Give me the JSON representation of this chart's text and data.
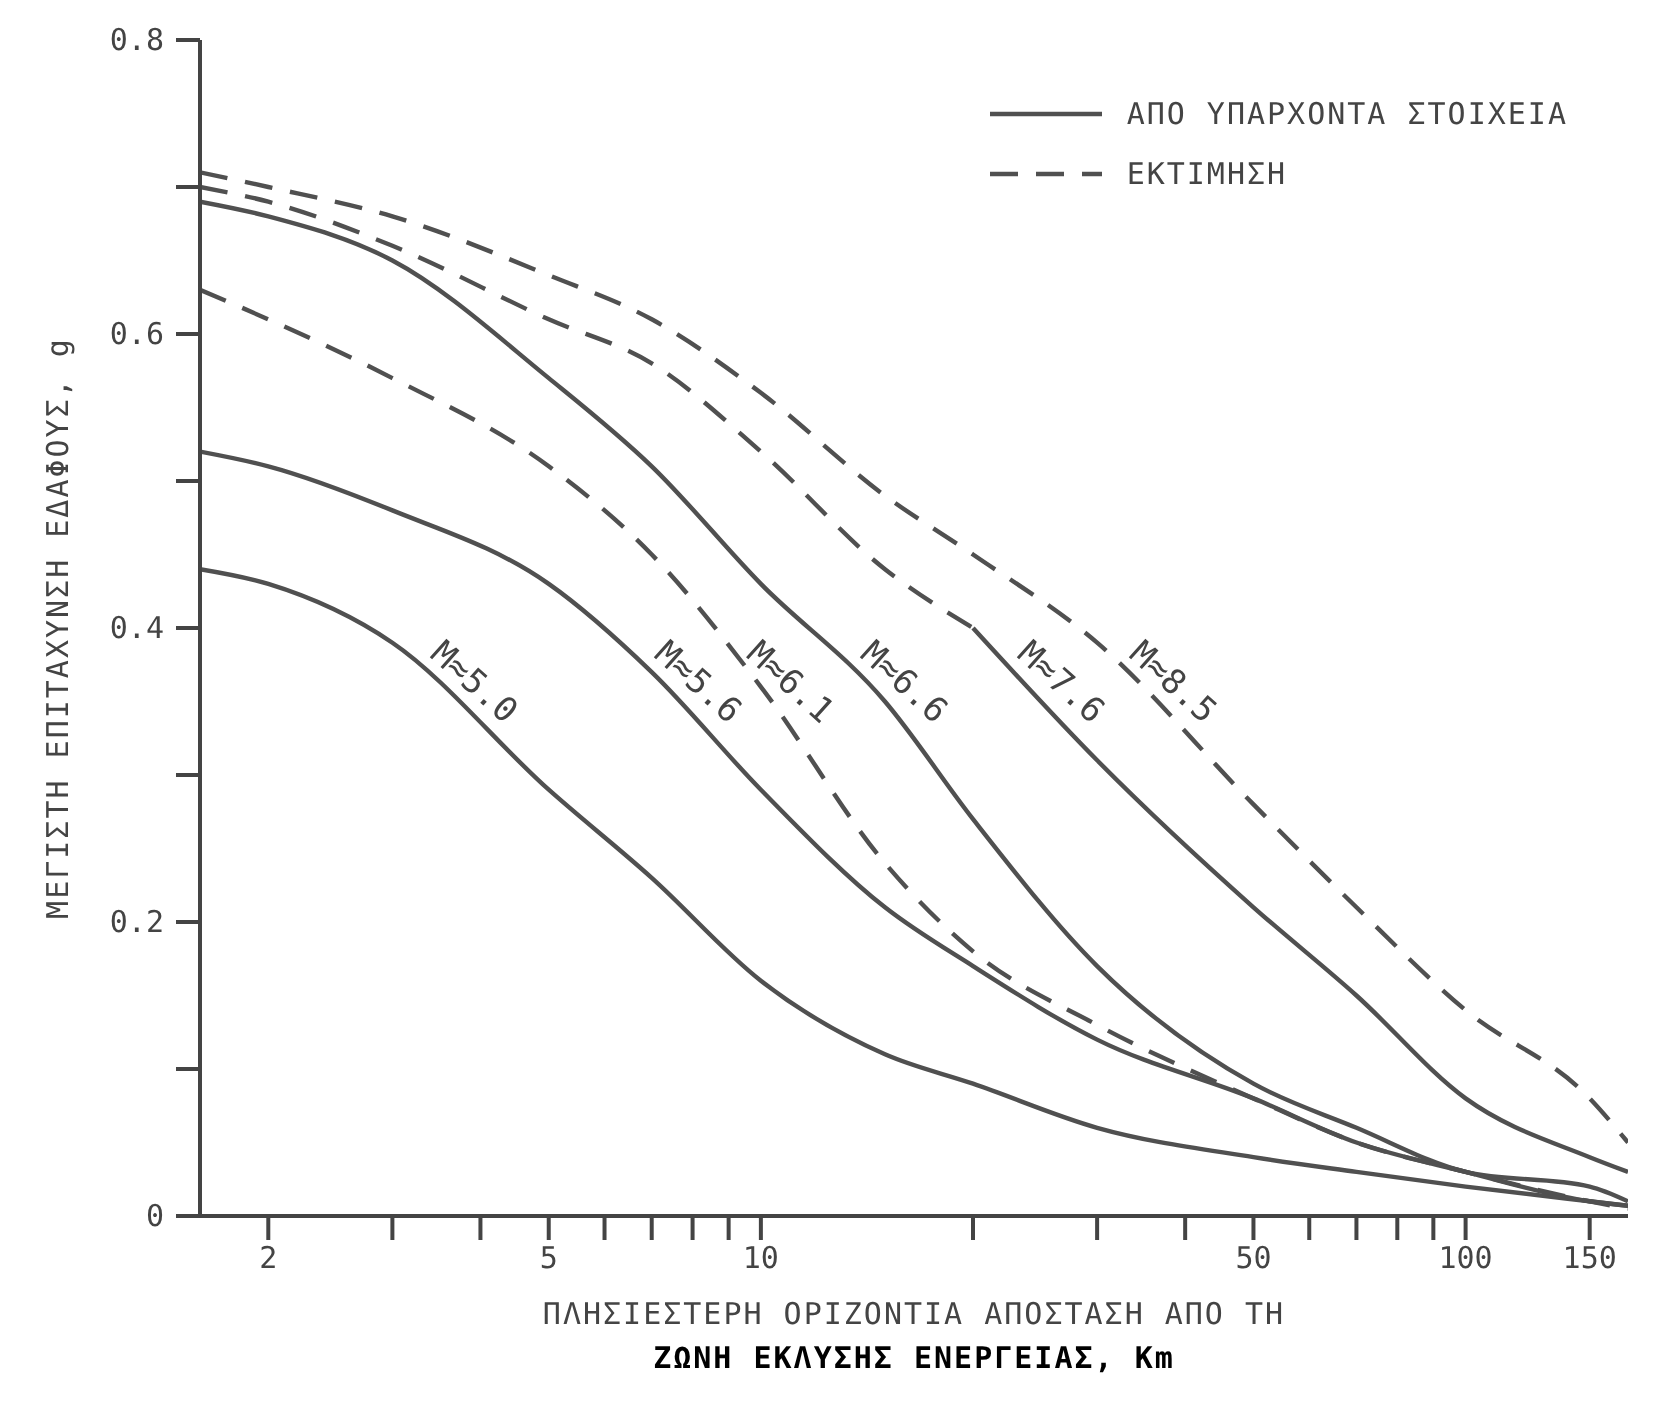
{
  "chart_data": {
    "type": "line",
    "xlabel": "ΠΛΗΣΙΕΣΤΕΡΗ ΟΡΙΖΟΝΤΙΑ ΑΠΟΣΤΑΣΗ ΑΠΟ ΤΗ\nΖΩΝΗ ΕΚΛΥΣΗΣ ΕΝΕΡΓΕΙΑΣ, Km",
    "ylabel": "ΜΕΓΙΣΤΗ ΕΠΙΤΑΧΥΝΣΗ ΕΔΑΦΟΥΣ, g",
    "log": "x",
    "xlim": [
      1.6,
      170
    ],
    "ylim": [
      0,
      0.8
    ],
    "xticks": [
      2,
      {
        "value": 3,
        "label": null
      },
      {
        "value": 4,
        "label": null
      },
      5,
      {
        "value": 6,
        "label": null
      },
      {
        "value": 7,
        "label": null
      },
      {
        "value": 8,
        "label": null
      },
      {
        "value": 9,
        "label": null
      },
      10,
      {
        "value": 20,
        "label": null
      },
      {
        "value": 30,
        "label": null
      },
      {
        "value": 40,
        "label": null
      },
      50,
      {
        "value": 60,
        "label": null
      },
      {
        "value": 70,
        "label": null
      },
      {
        "value": 80,
        "label": null
      },
      {
        "value": 90,
        "label": null
      },
      100,
      150
    ],
    "yticks": [
      0,
      {
        "value": 0.1,
        "label": null
      },
      0.2,
      {
        "value": 0.3,
        "label": null
      },
      0.4,
      {
        "value": 0.5,
        "label": null
      },
      0.6,
      {
        "value": 0.7,
        "label": null
      },
      0.8
    ],
    "grid": false,
    "marker": "none",
    "series": [
      {
        "name": "M≈8.5",
        "color": "#505050",
        "line_style": "dashed",
        "x": [
          1.6,
          2,
          3,
          5,
          7,
          10,
          15,
          20,
          30,
          50,
          70,
          100,
          150,
          170
        ],
        "values": [
          0.71,
          0.7,
          0.68,
          0.64,
          0.61,
          0.56,
          0.49,
          0.45,
          0.39,
          0.28,
          0.21,
          0.14,
          0.08,
          0.05
        ]
      },
      {
        "color": "#505050",
        "line_style": "dashed",
        "x": [
          1.6,
          2,
          3,
          5,
          7,
          10,
          15,
          20
        ],
        "values": [
          0.7,
          0.69,
          0.66,
          0.61,
          0.58,
          0.52,
          0.44,
          0.4
        ]
      },
      {
        "name": "M≈7.6",
        "color": "#505050",
        "line_style": "solid",
        "x": [
          20,
          30,
          50,
          70,
          100,
          150,
          170
        ],
        "values": [
          0.4,
          0.31,
          0.21,
          0.15,
          0.08,
          0.04,
          0.03
        ]
      },
      {
        "name": "M≈6.6",
        "color": "#505050",
        "line_style": "solid",
        "x": [
          1.6,
          2,
          3,
          5,
          7,
          10,
          15,
          20,
          30,
          50,
          70,
          100,
          150,
          170
        ],
        "values": [
          0.69,
          0.68,
          0.65,
          0.57,
          0.51,
          0.43,
          0.35,
          0.27,
          0.17,
          0.09,
          0.06,
          0.03,
          0.02,
          0.01
        ]
      },
      {
        "name": "M≈6.1",
        "color": "#505050",
        "line_style": "dashed",
        "x": [
          1.6,
          2,
          3,
          5,
          7,
          10,
          15,
          20,
          30,
          50,
          70,
          100,
          150,
          170
        ],
        "values": [
          0.63,
          0.61,
          0.57,
          0.51,
          0.45,
          0.36,
          0.24,
          0.18,
          0.13,
          0.08,
          0.05,
          0.03,
          0.01,
          0.005
        ]
      },
      {
        "name": "M≈5.6",
        "color": "#505050",
        "line_style": "solid",
        "x": [
          1.6,
          2,
          3,
          5,
          7,
          10,
          15,
          20,
          30,
          50,
          70,
          100,
          150,
          170
        ],
        "values": [
          0.52,
          0.51,
          0.48,
          0.43,
          0.37,
          0.29,
          0.21,
          0.17,
          0.12,
          0.08,
          0.05,
          0.03,
          0.01,
          0.007
        ]
      },
      {
        "name": "M≈5.0",
        "color": "#505050",
        "line_style": "solid",
        "x": [
          1.6,
          2,
          3,
          5,
          7,
          10,
          15,
          20,
          30,
          50,
          70,
          100,
          150,
          170
        ],
        "values": [
          0.44,
          0.43,
          0.39,
          0.29,
          0.23,
          0.16,
          0.11,
          0.09,
          0.06,
          0.04,
          0.03,
          0.02,
          0.01,
          0.007
        ]
      }
    ],
    "annotations": [
      "ΑΠΟ ΥΠΑΡΧΟΝΤΑ ΣΤΟΙΧΕΙΑ",
      "ΕΚΤΙΜΗΣΗ"
    ]
  }
}
